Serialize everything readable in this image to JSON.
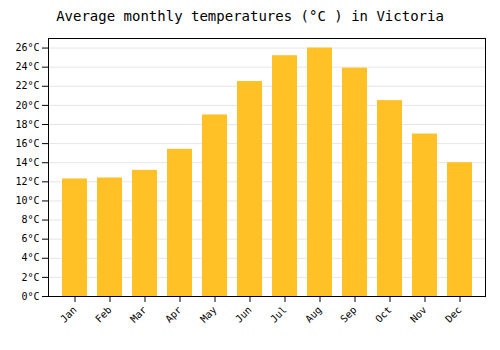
{
  "chart_data": {
    "type": "bar",
    "title": "Average monthly temperatures (°C ) in Victoria",
    "categories": [
      "Jan",
      "Feb",
      "Mar",
      "Apr",
      "May",
      "Jun",
      "Jul",
      "Aug",
      "Sep",
      "Oct",
      "Nov",
      "Dec"
    ],
    "values": [
      12.3,
      12.4,
      13.2,
      15.4,
      19.0,
      22.5,
      25.2,
      26.0,
      23.9,
      20.5,
      17.0,
      14.0
    ],
    "color": "#FFC125",
    "ylim": [
      0,
      27
    ],
    "yticks": [
      {
        "value": 0,
        "label": "0°C"
      },
      {
        "value": 2,
        "label": "2°C"
      },
      {
        "value": 4,
        "label": "4°C"
      },
      {
        "value": 6,
        "label": "6°C"
      },
      {
        "value": 8,
        "label": "8°C"
      },
      {
        "value": 10,
        "label": "10°C"
      },
      {
        "value": 12,
        "label": "12°C"
      },
      {
        "value": 14,
        "label": "14°C"
      },
      {
        "value": 16,
        "label": "16°C"
      },
      {
        "value": 18,
        "label": "18°C"
      },
      {
        "value": 20,
        "label": "20°C"
      },
      {
        "value": 22,
        "label": "22°C"
      },
      {
        "value": 24,
        "label": "24°C"
      },
      {
        "value": 26,
        "label": "26°C"
      }
    ],
    "grid": true
  }
}
